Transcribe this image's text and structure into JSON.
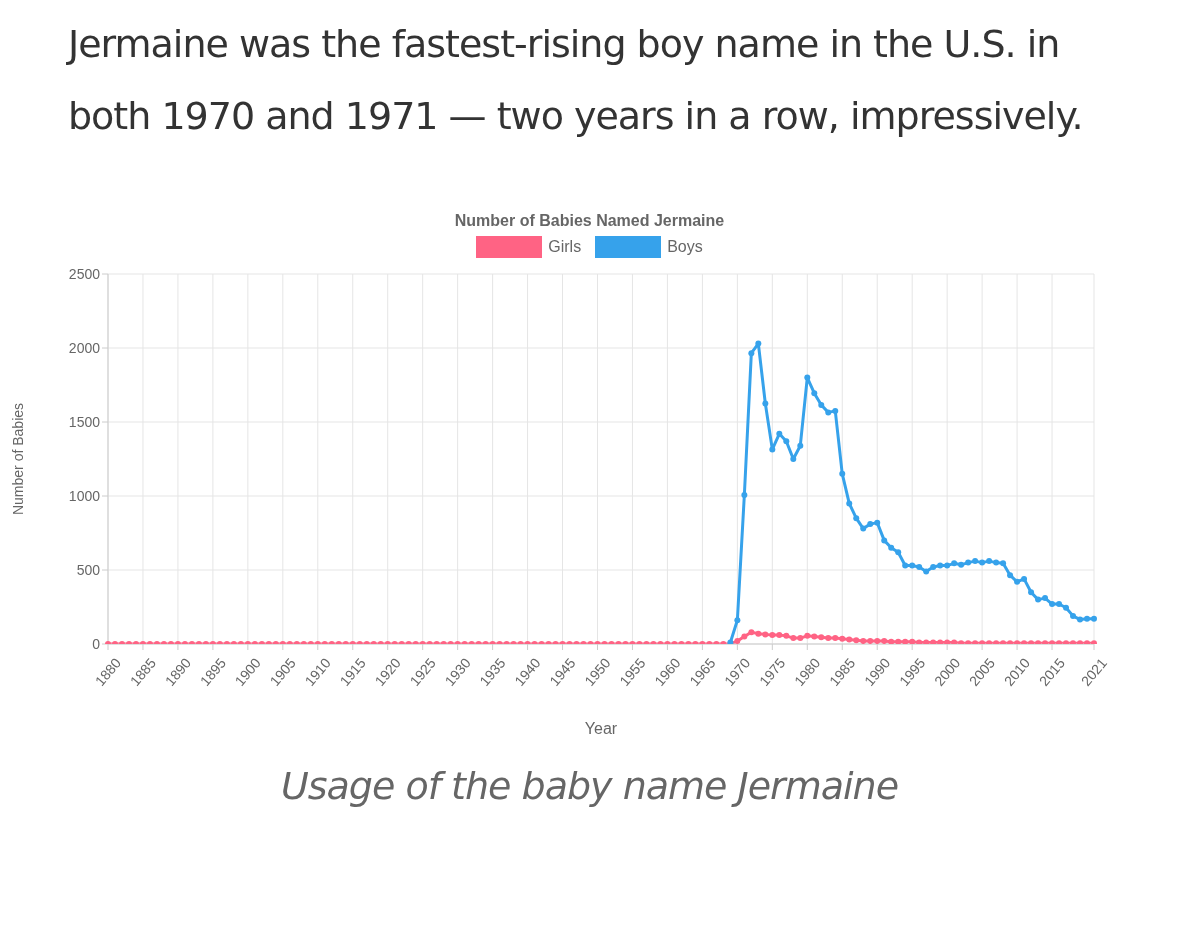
{
  "chart_data": {
    "type": "line",
    "title": "Number of Babies Named Jermaine",
    "annotations": [
      "Jermaine was the fastest-rising boy name in the U.S. in both 1970 and 1971 — two years in a row, impressively.",
      "Usage of the baby name Jermaine"
    ],
    "xlabel": "Year",
    "ylabel": "Number of Babies",
    "categories": [
      "1880",
      null,
      null,
      null,
      null,
      "1885",
      null,
      null,
      null,
      null,
      "1890",
      null,
      null,
      null,
      null,
      "1895",
      null,
      null,
      null,
      null,
      "1900",
      null,
      null,
      null,
      null,
      "1905",
      null,
      null,
      null,
      null,
      "1910",
      null,
      null,
      null,
      null,
      "1915",
      null,
      null,
      null,
      null,
      "1920",
      null,
      null,
      null,
      null,
      "1925",
      null,
      null,
      null,
      null,
      "1930",
      null,
      null,
      null,
      null,
      "1935",
      null,
      null,
      null,
      null,
      "1940",
      null,
      null,
      null,
      null,
      "1945",
      null,
      null,
      null,
      null,
      "1950",
      null,
      null,
      null,
      null,
      "1955",
      null,
      null,
      null,
      null,
      "1960",
      null,
      null,
      null,
      null,
      "1965",
      null,
      null,
      null,
      null,
      "1970",
      null,
      null,
      null,
      null,
      "1975",
      null,
      null,
      null,
      null,
      "1980",
      null,
      null,
      null,
      null,
      "1985",
      null,
      null,
      null,
      null,
      "1990",
      null,
      null,
      null,
      null,
      "1995",
      null,
      null,
      null,
      null,
      "2000",
      null,
      null,
      null,
      null,
      "2005",
      null,
      null,
      null,
      null,
      "2010",
      null,
      null,
      null,
      null,
      "2015",
      null,
      null,
      null,
      null,
      null,
      "2021"
    ],
    "series": [
      {
        "name": "Girls",
        "color": "#ff6384",
        "values": [
          0,
          0,
          0,
          0,
          0,
          0,
          0,
          0,
          0,
          0,
          0,
          0,
          0,
          0,
          0,
          0,
          0,
          0,
          0,
          0,
          0,
          0,
          0,
          0,
          0,
          0,
          0,
          0,
          0,
          0,
          0,
          0,
          0,
          0,
          0,
          0,
          0,
          0,
          0,
          0,
          0,
          0,
          0,
          0,
          0,
          0,
          0,
          0,
          0,
          0,
          0,
          0,
          0,
          0,
          0,
          0,
          0,
          0,
          0,
          0,
          0,
          0,
          0,
          0,
          0,
          0,
          0,
          0,
          0,
          0,
          0,
          0,
          0,
          0,
          0,
          0,
          0,
          0,
          0,
          0,
          0,
          0,
          0,
          0,
          0,
          0,
          0,
          0,
          0,
          0,
          20,
          50,
          80,
          70,
          65,
          60,
          60,
          55,
          40,
          40,
          55,
          50,
          45,
          40,
          40,
          35,
          30,
          25,
          20,
          20,
          20,
          20,
          15,
          15,
          15,
          15,
          10,
          10,
          10,
          10,
          10,
          10,
          5,
          5,
          5,
          5,
          5,
          5,
          5,
          5,
          5,
          5,
          5,
          5,
          5,
          5,
          5,
          5,
          5,
          5,
          5,
          5
        ]
      },
      {
        "name": "Boys",
        "color": "#36a2eb",
        "values": [
          null,
          null,
          null,
          null,
          null,
          null,
          null,
          null,
          null,
          null,
          null,
          null,
          null,
          null,
          null,
          null,
          null,
          null,
          null,
          null,
          null,
          null,
          null,
          null,
          null,
          null,
          null,
          null,
          null,
          null,
          null,
          null,
          null,
          null,
          null,
          null,
          null,
          null,
          null,
          null,
          null,
          null,
          null,
          null,
          null,
          null,
          null,
          null,
          null,
          null,
          null,
          null,
          null,
          null,
          null,
          null,
          null,
          null,
          null,
          null,
          null,
          null,
          null,
          null,
          null,
          null,
          null,
          null,
          null,
          null,
          null,
          null,
          null,
          null,
          null,
          null,
          null,
          null,
          null,
          null,
          null,
          null,
          null,
          null,
          null,
          null,
          null,
          null,
          null,
          10,
          160,
          1007,
          1965,
          2030,
          1625,
          1315,
          1420,
          1370,
          1250,
          1340,
          1800,
          1695,
          1615,
          1565,
          1575,
          1150,
          950,
          850,
          780,
          810,
          820,
          700,
          650,
          620,
          530,
          530,
          520,
          490,
          520,
          530,
          530,
          545,
          535,
          550,
          560,
          550,
          560,
          550,
          545,
          465,
          420,
          440,
          350,
          300,
          310,
          270,
          270,
          245,
          190,
          165,
          170,
          170
        ]
      }
    ],
    "ylim": [
      0,
      2500
    ],
    "yticks": [
      0,
      500,
      1000,
      1500,
      2000,
      2500
    ],
    "grid": true,
    "legend": "top",
    "marker": "circle",
    "line_style": "solid"
  }
}
